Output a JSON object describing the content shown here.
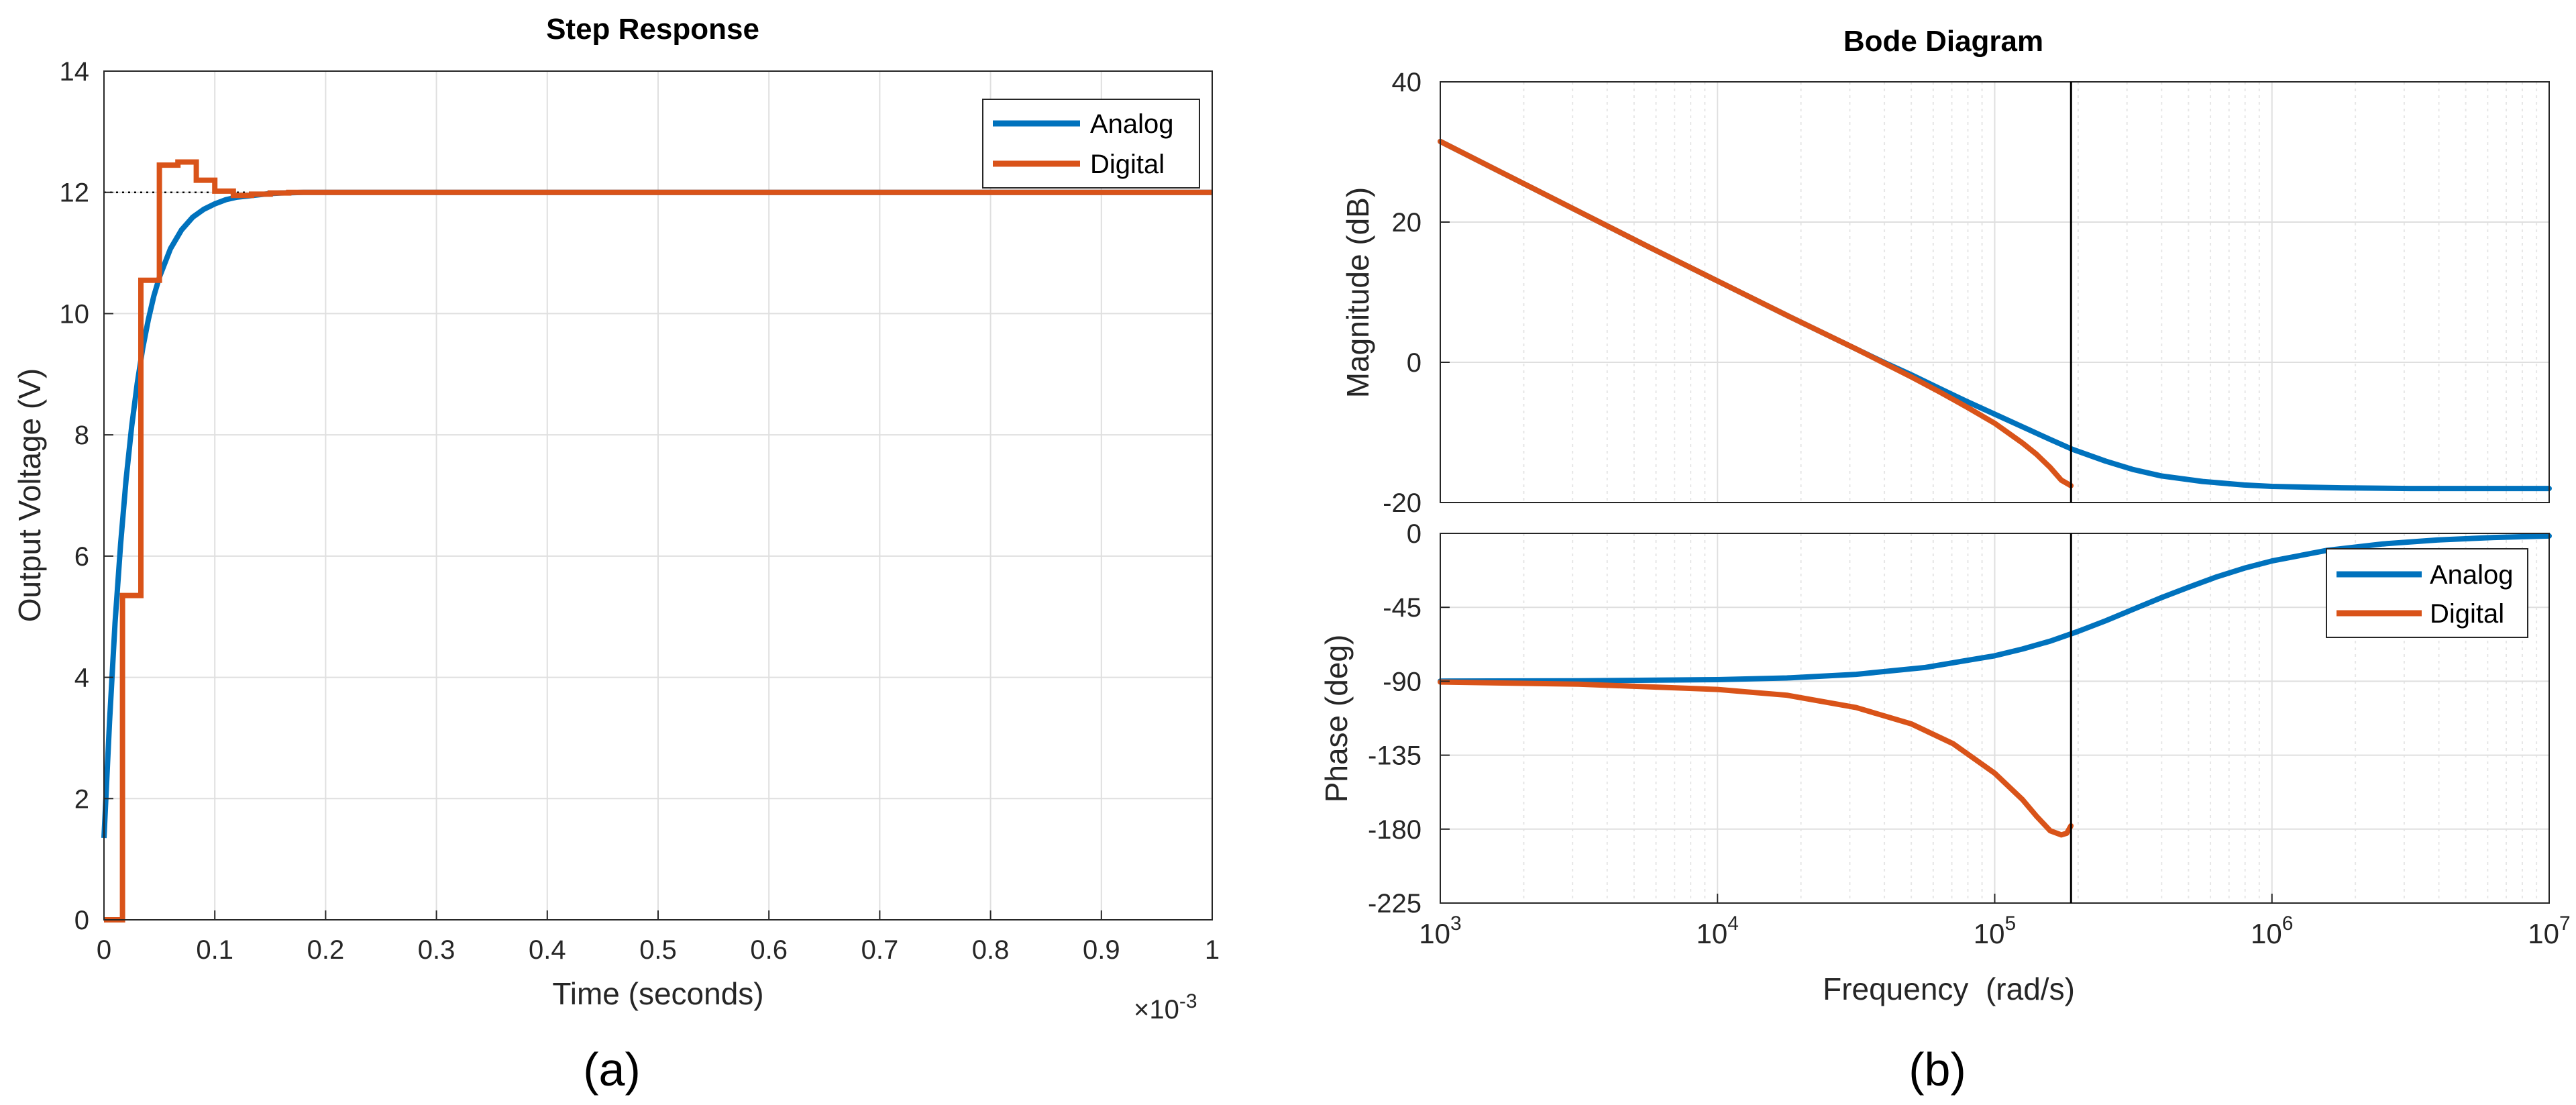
{
  "colors": {
    "analog": "#0072BD",
    "digital": "#D95319",
    "grid": "#dfdfdf",
    "axis": "#262626"
  },
  "chart_data": [
    {
      "type": "line",
      "panel_label": "(a)",
      "title": "Step Response",
      "xlabel": "Time (seconds)",
      "ylabel": "Output Voltage (V)",
      "x_exponent_label": "×10",
      "x_exponent_power": "-3",
      "xlim": [
        0,
        1
      ],
      "ylim": [
        0,
        14
      ],
      "xticks": [
        0,
        0.1,
        0.2,
        0.3,
        0.4,
        0.5,
        0.6,
        0.7,
        0.8,
        0.9,
        1
      ],
      "xtick_labels": [
        "0",
        "0.1",
        "0.2",
        "0.3",
        "0.4",
        "0.5",
        "0.6",
        "0.7",
        "0.8",
        "0.9",
        "1"
      ],
      "yticks": [
        0,
        2,
        4,
        6,
        8,
        10,
        12,
        14
      ],
      "ytick_labels": [
        "0",
        "2",
        "4",
        "6",
        "8",
        "10",
        "12",
        "14"
      ],
      "grid": true,
      "steady_state": {
        "value": 12,
        "x_end": 0.22
      },
      "legend": [
        "Analog",
        "Digital"
      ],
      "series": [
        {
          "name": "Analog",
          "kind": "continuous",
          "x": [
            0,
            0.005,
            0.01,
            0.015,
            0.02,
            0.025,
            0.03,
            0.035,
            0.04,
            0.045,
            0.05,
            0.06,
            0.07,
            0.08,
            0.09,
            0.1,
            0.11,
            0.12,
            0.13,
            0.14,
            0.15,
            0.16,
            0.18,
            0.2,
            0.22,
            0.25,
            0.3,
            0.4,
            0.5,
            0.6,
            0.7,
            0.8,
            0.9,
            1.0
          ],
          "y": [
            1.35,
            3.27,
            4.9,
            6.2,
            7.27,
            8.14,
            8.85,
            9.43,
            9.9,
            10.29,
            10.6,
            11.07,
            11.38,
            11.59,
            11.72,
            11.81,
            11.88,
            11.92,
            11.94,
            11.96,
            11.98,
            11.99,
            12.0,
            12.0,
            12.0,
            12.0,
            12.0,
            12.0,
            12.0,
            12.0,
            12.0,
            12.0,
            12.0,
            12.0
          ]
        },
        {
          "name": "Digital",
          "kind": "stairs",
          "x": [
            0,
            0.0167,
            0.0333,
            0.05,
            0.0667,
            0.0833,
            0.1,
            0.1167,
            0.1333,
            0.15,
            0.1667,
            1.0
          ],
          "y": [
            0,
            5.35,
            10.55,
            12.45,
            12.5,
            12.2,
            12.02,
            11.95,
            11.97,
            11.99,
            12.0,
            12.0
          ]
        }
      ]
    },
    {
      "type": "line",
      "panel_label": "(b)",
      "title": "Bode Diagram",
      "xlabel": "Frequency  (rad/s)",
      "xscale": "log",
      "xlim": [
        1000,
        10000000
      ],
      "xtick_decades": [
        3,
        4,
        5,
        6,
        7
      ],
      "xtick_base": "10",
      "xtick_exponents": [
        "3",
        "4",
        "5",
        "6",
        "7"
      ],
      "nyquist_line_frequency": 188500,
      "legend": [
        "Analog",
        "Digital"
      ],
      "legend_location": "top-right of phase plot",
      "magnitude": {
        "ylabel": "Magnitude (dB)",
        "ylim": [
          -20,
          40
        ],
        "yticks": [
          -20,
          0,
          20,
          40
        ],
        "ytick_labels": [
          "-20",
          "0",
          "20",
          "40"
        ],
        "series": [
          {
            "name": "Analog",
            "log10_w": [
              3,
              3.25,
              3.5,
              3.75,
              4,
              4.25,
              4.5,
              4.6,
              4.7,
              4.8,
              4.9,
              5.0,
              5.1,
              5.2,
              5.28,
              5.4,
              5.5,
              5.6,
              5.75,
              5.9,
              6.0,
              6.25,
              6.5,
              7.0
            ],
            "y": [
              31.5,
              26.5,
              21.5,
              16.5,
              11.6,
              6.7,
              1.9,
              0.0,
              -1.8,
              -3.7,
              -5.6,
              -7.4,
              -9.2,
              -11.0,
              -12.4,
              -14.1,
              -15.3,
              -16.2,
              -17.0,
              -17.5,
              -17.7,
              -17.9,
              -18.0,
              -18.0
            ]
          },
          {
            "name": "Digital",
            "log10_w": [
              3,
              3.25,
              3.5,
              3.75,
              4,
              4.25,
              4.5,
              4.6,
              4.7,
              4.8,
              4.9,
              5.0,
              5.1,
              5.15,
              5.2,
              5.24,
              5.275
            ],
            "y": [
              31.5,
              26.5,
              21.5,
              16.5,
              11.6,
              6.7,
              1.9,
              -0.1,
              -2.1,
              -4.2,
              -6.4,
              -8.7,
              -11.5,
              -13.1,
              -15.0,
              -16.8,
              -17.6
            ]
          }
        ]
      },
      "phase": {
        "ylabel": "Phase (deg)",
        "ylim": [
          -225,
          0
        ],
        "yticks": [
          -225,
          -180,
          -135,
          -90,
          -45,
          0
        ],
        "ytick_labels": [
          "-225",
          "-180",
          "-135",
          "-90",
          "-45",
          "0"
        ],
        "series": [
          {
            "name": "Analog",
            "log10_w": [
              3,
              3.5,
              4,
              4.25,
              4.5,
              4.75,
              5.0,
              5.1,
              5.2,
              5.3,
              5.4,
              5.5,
              5.6,
              5.7,
              5.8,
              5.9,
              6.0,
              6.2,
              6.4,
              6.6,
              6.8,
              7.0
            ],
            "y": [
              -89.9,
              -89.7,
              -89.0,
              -88.0,
              -85.8,
              -81.6,
              -74.5,
              -70.4,
              -65.6,
              -59.7,
              -53.2,
              -46.2,
              -39.2,
              -32.7,
              -26.5,
              -21.2,
              -16.8,
              -10.3,
              -6.4,
              -4.0,
              -2.5,
              -1.6
            ]
          },
          {
            "name": "Digital",
            "log10_w": [
              3,
              3.5,
              4,
              4.25,
              4.5,
              4.7,
              4.85,
              5.0,
              5.1,
              5.15,
              5.2,
              5.24,
              5.26,
              5.275
            ],
            "y": [
              -90.5,
              -91.8,
              -95.0,
              -98.5,
              -106,
              -116,
              -128,
              -146,
              -162,
              -172,
              -181,
              -183.5,
              -182.5,
              -178
            ]
          }
        ]
      }
    }
  ]
}
